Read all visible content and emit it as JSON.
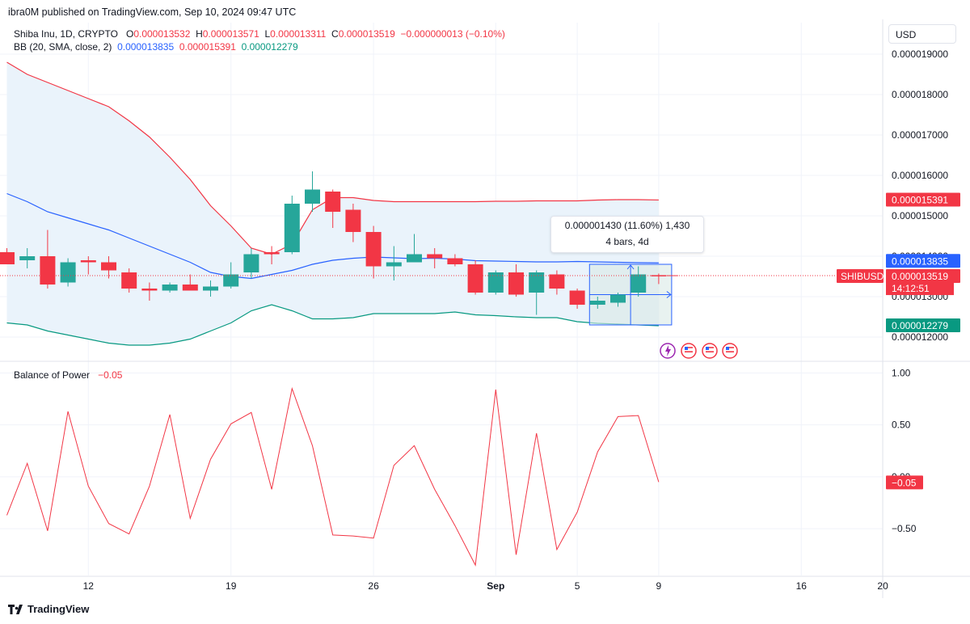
{
  "header": {
    "published": "ibra0M published on TradingView.com, Sep 10, 2024 09:47 UTC",
    "symbol": "Shiba Inu, 1D, CRYPTO",
    "o_label": "O",
    "o": "0.000013532",
    "h_label": "H",
    "h": "0.000013571",
    "l_label": "L",
    "l": "0.000013311",
    "c_label": "C",
    "c": "0.000013519",
    "change": "−0.000000013 (−0.10%)",
    "bb_label": "BB (20, SMA, close, 2)",
    "bb_basis": "0.000013835",
    "bb_upper": "0.000015391",
    "bb_lower": "0.000012279",
    "bop_label": "Balance of Power",
    "bop_value": "−0.05"
  },
  "currency": "USD",
  "brand": "TradingView",
  "tooltip": {
    "line1": "0.000001430 (11.60%) 1,430",
    "line2": "4 bars, 4d"
  },
  "colors": {
    "up": "#26a69a",
    "down": "#f23645",
    "bb_basis": "#2962ff",
    "bb_upper": "#f23645",
    "bb_lower": "#089981",
    "bb_fill": "#eaf3fb",
    "bop": "#f23645",
    "grid": "#f0f3fa",
    "range_fill": "#d8e9e6",
    "range_border": "#2962ff"
  },
  "chart_data": [
    {
      "type": "candlestick",
      "symbol": "SHIBUSD",
      "interval": "1D",
      "x_ticks": [
        "12",
        "19",
        "26",
        "Sep",
        "5",
        "9",
        "16",
        "20"
      ],
      "y_ticks": [
        "0.000012000",
        "0.000013000",
        "0.000014000",
        "0.000015000",
        "0.000016000",
        "0.000017000",
        "0.000018000",
        "0.000019000"
      ],
      "ylim": [
        1.12e-05,
        1.99e-05
      ],
      "candles": [
        {
          "date": "Aug 8",
          "o": 1.41e-05,
          "h": 1.42e-05,
          "l": 1.38e-05,
          "c": 1.38e-05
        },
        {
          "date": "Aug 9",
          "o": 1.39e-05,
          "h": 1.42e-05,
          "l": 1.37e-05,
          "c": 1.4e-05
        },
        {
          "date": "Aug 10",
          "o": 1.4e-05,
          "h": 1.465e-05,
          "l": 1.32e-05,
          "c": 1.33e-05
        },
        {
          "date": "Aug 11",
          "o": 1.335e-05,
          "h": 1.395e-05,
          "l": 1.325e-05,
          "c": 1.385e-05
        },
        {
          "date": "Aug 12",
          "o": 1.39e-05,
          "h": 1.4e-05,
          "l": 1.355e-05,
          "c": 1.385e-05
        },
        {
          "date": "Aug 13",
          "o": 1.385e-05,
          "h": 1.4e-05,
          "l": 1.345e-05,
          "c": 1.365e-05
        },
        {
          "date": "Aug 14",
          "o": 1.36e-05,
          "h": 1.37e-05,
          "l": 1.31e-05,
          "c": 1.32e-05
        },
        {
          "date": "Aug 15",
          "o": 1.32e-05,
          "h": 1.335e-05,
          "l": 1.29e-05,
          "c": 1.315e-05
        },
        {
          "date": "Aug 16",
          "o": 1.315e-05,
          "h": 1.335e-05,
          "l": 1.31e-05,
          "c": 1.33e-05
        },
        {
          "date": "Aug 17",
          "o": 1.33e-05,
          "h": 1.355e-05,
          "l": 1.315e-05,
          "c": 1.315e-05
        },
        {
          "date": "Aug 18",
          "o": 1.315e-05,
          "h": 1.34e-05,
          "l": 1.3e-05,
          "c": 1.325e-05
        },
        {
          "date": "Aug 19",
          "o": 1.325e-05,
          "h": 1.385e-05,
          "l": 1.32e-05,
          "c": 1.355e-05
        },
        {
          "date": "Aug 20",
          "o": 1.36e-05,
          "h": 1.42e-05,
          "l": 1.345e-05,
          "c": 1.405e-05
        },
        {
          "date": "Aug 21",
          "o": 1.41e-05,
          "h": 1.425e-05,
          "l": 1.38e-05,
          "c": 1.405e-05
        },
        {
          "date": "Aug 22",
          "o": 1.41e-05,
          "h": 1.55e-05,
          "l": 1.405e-05,
          "c": 1.53e-05
        },
        {
          "date": "Aug 23",
          "o": 1.53e-05,
          "h": 1.61e-05,
          "l": 1.51e-05,
          "c": 1.565e-05
        },
        {
          "date": "Aug 24",
          "o": 1.56e-05,
          "h": 1.565e-05,
          "l": 1.47e-05,
          "c": 1.51e-05
        },
        {
          "date": "Aug 25",
          "o": 1.515e-05,
          "h": 1.53e-05,
          "l": 1.435e-05,
          "c": 1.46e-05
        },
        {
          "date": "Aug 26",
          "o": 1.46e-05,
          "h": 1.475e-05,
          "l": 1.345e-05,
          "c": 1.375e-05
        },
        {
          "date": "Aug 27",
          "o": 1.375e-05,
          "h": 1.425e-05,
          "l": 1.34e-05,
          "c": 1.385e-05
        },
        {
          "date": "Aug 28",
          "o": 1.385e-05,
          "h": 1.455e-05,
          "l": 1.385e-05,
          "c": 1.405e-05
        },
        {
          "date": "Aug 29",
          "o": 1.405e-05,
          "h": 1.42e-05,
          "l": 1.37e-05,
          "c": 1.395e-05
        },
        {
          "date": "Aug 30",
          "o": 1.395e-05,
          "h": 1.405e-05,
          "l": 1.375e-05,
          "c": 1.38e-05
        },
        {
          "date": "Aug 31",
          "o": 1.38e-05,
          "h": 1.39e-05,
          "l": 1.305e-05,
          "c": 1.31e-05
        },
        {
          "date": "Sep 1",
          "o": 1.31e-05,
          "h": 1.365e-05,
          "l": 1.305e-05,
          "c": 1.36e-05
        },
        {
          "date": "Sep 2",
          "o": 1.36e-05,
          "h": 1.38e-05,
          "l": 1.3e-05,
          "c": 1.305e-05
        },
        {
          "date": "Sep 3",
          "o": 1.31e-05,
          "h": 1.365e-05,
          "l": 1.255e-05,
          "c": 1.36e-05
        },
        {
          "date": "Sep 4",
          "o": 1.355e-05,
          "h": 1.365e-05,
          "l": 1.305e-05,
          "c": 1.32e-05
        },
        {
          "date": "Sep 5",
          "o": 1.315e-05,
          "h": 1.32e-05,
          "l": 1.27e-05,
          "c": 1.28e-05
        },
        {
          "date": "Sep 6",
          "o": 1.28e-05,
          "h": 1.3e-05,
          "l": 1.27e-05,
          "c": 1.29e-05
        },
        {
          "date": "Sep 7",
          "o": 1.285e-05,
          "h": 1.31e-05,
          "l": 1.275e-05,
          "c": 1.305e-05
        },
        {
          "date": "Sep 8",
          "o": 1.31e-05,
          "h": 1.375e-05,
          "l": 1.3e-05,
          "c": 1.355e-05
        },
        {
          "date": "Sep 9",
          "o": 1.3532e-05,
          "h": 1.3571e-05,
          "l": 1.3311e-05,
          "c": 1.3519e-05
        }
      ],
      "bb_upper": [
        1.88e-05,
        1.85e-05,
        1.83e-05,
        1.81e-05,
        1.79e-05,
        1.77e-05,
        1.735e-05,
        1.695e-05,
        1.645e-05,
        1.59e-05,
        1.525e-05,
        1.475e-05,
        1.42e-05,
        1.405e-05,
        1.43e-05,
        1.515e-05,
        1.545e-05,
        1.545e-05,
        1.538e-05,
        1.535e-05,
        1.535e-05,
        1.535e-05,
        1.535e-05,
        1.535e-05,
        1.536e-05,
        1.536e-05,
        1.537e-05,
        1.537e-05,
        1.537e-05,
        1.539e-05,
        1.54e-05,
        1.54e-05,
        1.5391e-05
      ],
      "bb_basis": [
        1.555e-05,
        1.535e-05,
        1.51e-05,
        1.495e-05,
        1.48e-05,
        1.465e-05,
        1.445e-05,
        1.425e-05,
        1.405e-05,
        1.385e-05,
        1.36e-05,
        1.35e-05,
        1.345e-05,
        1.355e-05,
        1.365e-05,
        1.38e-05,
        1.39e-05,
        1.395e-05,
        1.398e-05,
        1.396e-05,
        1.394e-05,
        1.395e-05,
        1.393e-05,
        1.389e-05,
        1.388e-05,
        1.387e-05,
        1.386e-05,
        1.386e-05,
        1.387e-05,
        1.386e-05,
        1.385e-05,
        1.384e-05,
        1.3835e-05
      ],
      "bb_lower": [
        1.235e-05,
        1.23e-05,
        1.215e-05,
        1.205e-05,
        1.195e-05,
        1.185e-05,
        1.18e-05,
        1.18e-05,
        1.185e-05,
        1.195e-05,
        1.215e-05,
        1.235e-05,
        1.265e-05,
        1.28e-05,
        1.265e-05,
        1.245e-05,
        1.245e-05,
        1.248e-05,
        1.258e-05,
        1.258e-05,
        1.258e-05,
        1.258e-05,
        1.262e-05,
        1.255e-05,
        1.253e-05,
        1.25e-05,
        1.248e-05,
        1.248e-05,
        1.238e-05,
        1.234e-05,
        1.232e-05,
        1.23e-05,
        1.2279e-05
      ],
      "price_labels": [
        {
          "text": "0.000015391",
          "kind": "bb_upper"
        },
        {
          "text": "0.000013835",
          "kind": "bb_basis"
        },
        {
          "text": "0.000013519",
          "kind": "last"
        },
        {
          "text": "14:12:51",
          "kind": "countdown"
        },
        {
          "text": "0.000012279",
          "kind": "bb_lower"
        }
      ],
      "last_symbol_label": "SHIBUSD",
      "measure_range": {
        "from": "Sep 6",
        "to": "Sep 9",
        "low": 1.23e-05,
        "high": 1.38e-05
      }
    },
    {
      "type": "line",
      "name": "Balance of Power",
      "y_ticks": [
        "1.00",
        "0.50",
        "0.00",
        "−0.50"
      ],
      "ylim": [
        -0.95,
        1.05
      ],
      "values": [
        -0.37,
        0.13,
        -0.52,
        0.63,
        -0.09,
        -0.45,
        -0.55,
        -0.09,
        0.6,
        -0.4,
        0.17,
        0.51,
        0.62,
        -0.12,
        0.85,
        0.3,
        -0.56,
        -0.57,
        -0.59,
        0.11,
        0.3,
        -0.12,
        -0.47,
        -0.85,
        0.84,
        -0.75,
        0.42,
        -0.7,
        -0.34,
        0.24,
        0.58,
        0.59,
        -0.05
      ],
      "last_label": "−0.05"
    }
  ]
}
